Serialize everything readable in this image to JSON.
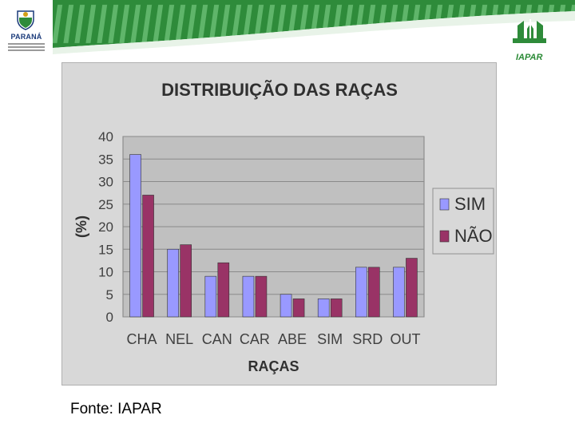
{
  "header": {
    "left_logo_text": "PARANÁ",
    "right_logo_text": "IAPAR",
    "left_logo_icon": "state-coat-of-arms-icon",
    "right_logo_icon": "iapar-logo-icon",
    "band_color": "#2e8b3a"
  },
  "chart_data": {
    "type": "bar",
    "title": "DISTRIBUIÇÃO DAS RAÇAS",
    "xlabel": "RAÇAS",
    "ylabel": "(%)",
    "ylim": [
      0,
      40
    ],
    "yticks": [
      0,
      5,
      10,
      15,
      20,
      25,
      30,
      35,
      40
    ],
    "grid": true,
    "legend_position": "right",
    "categories": [
      "CHA",
      "NEL",
      "CAN",
      "CAR",
      "ABE",
      "SIM",
      "SRD",
      "OUT"
    ],
    "series": [
      {
        "name": "SIM",
        "color": "#9999ff",
        "values": [
          36,
          15,
          9,
          9,
          5,
          4,
          11,
          11
        ]
      },
      {
        "name": "NÃO",
        "color": "#993366",
        "values": [
          27,
          16,
          12,
          9,
          4,
          4,
          11,
          13
        ]
      }
    ]
  },
  "source_note": "Fonte: IAPAR"
}
